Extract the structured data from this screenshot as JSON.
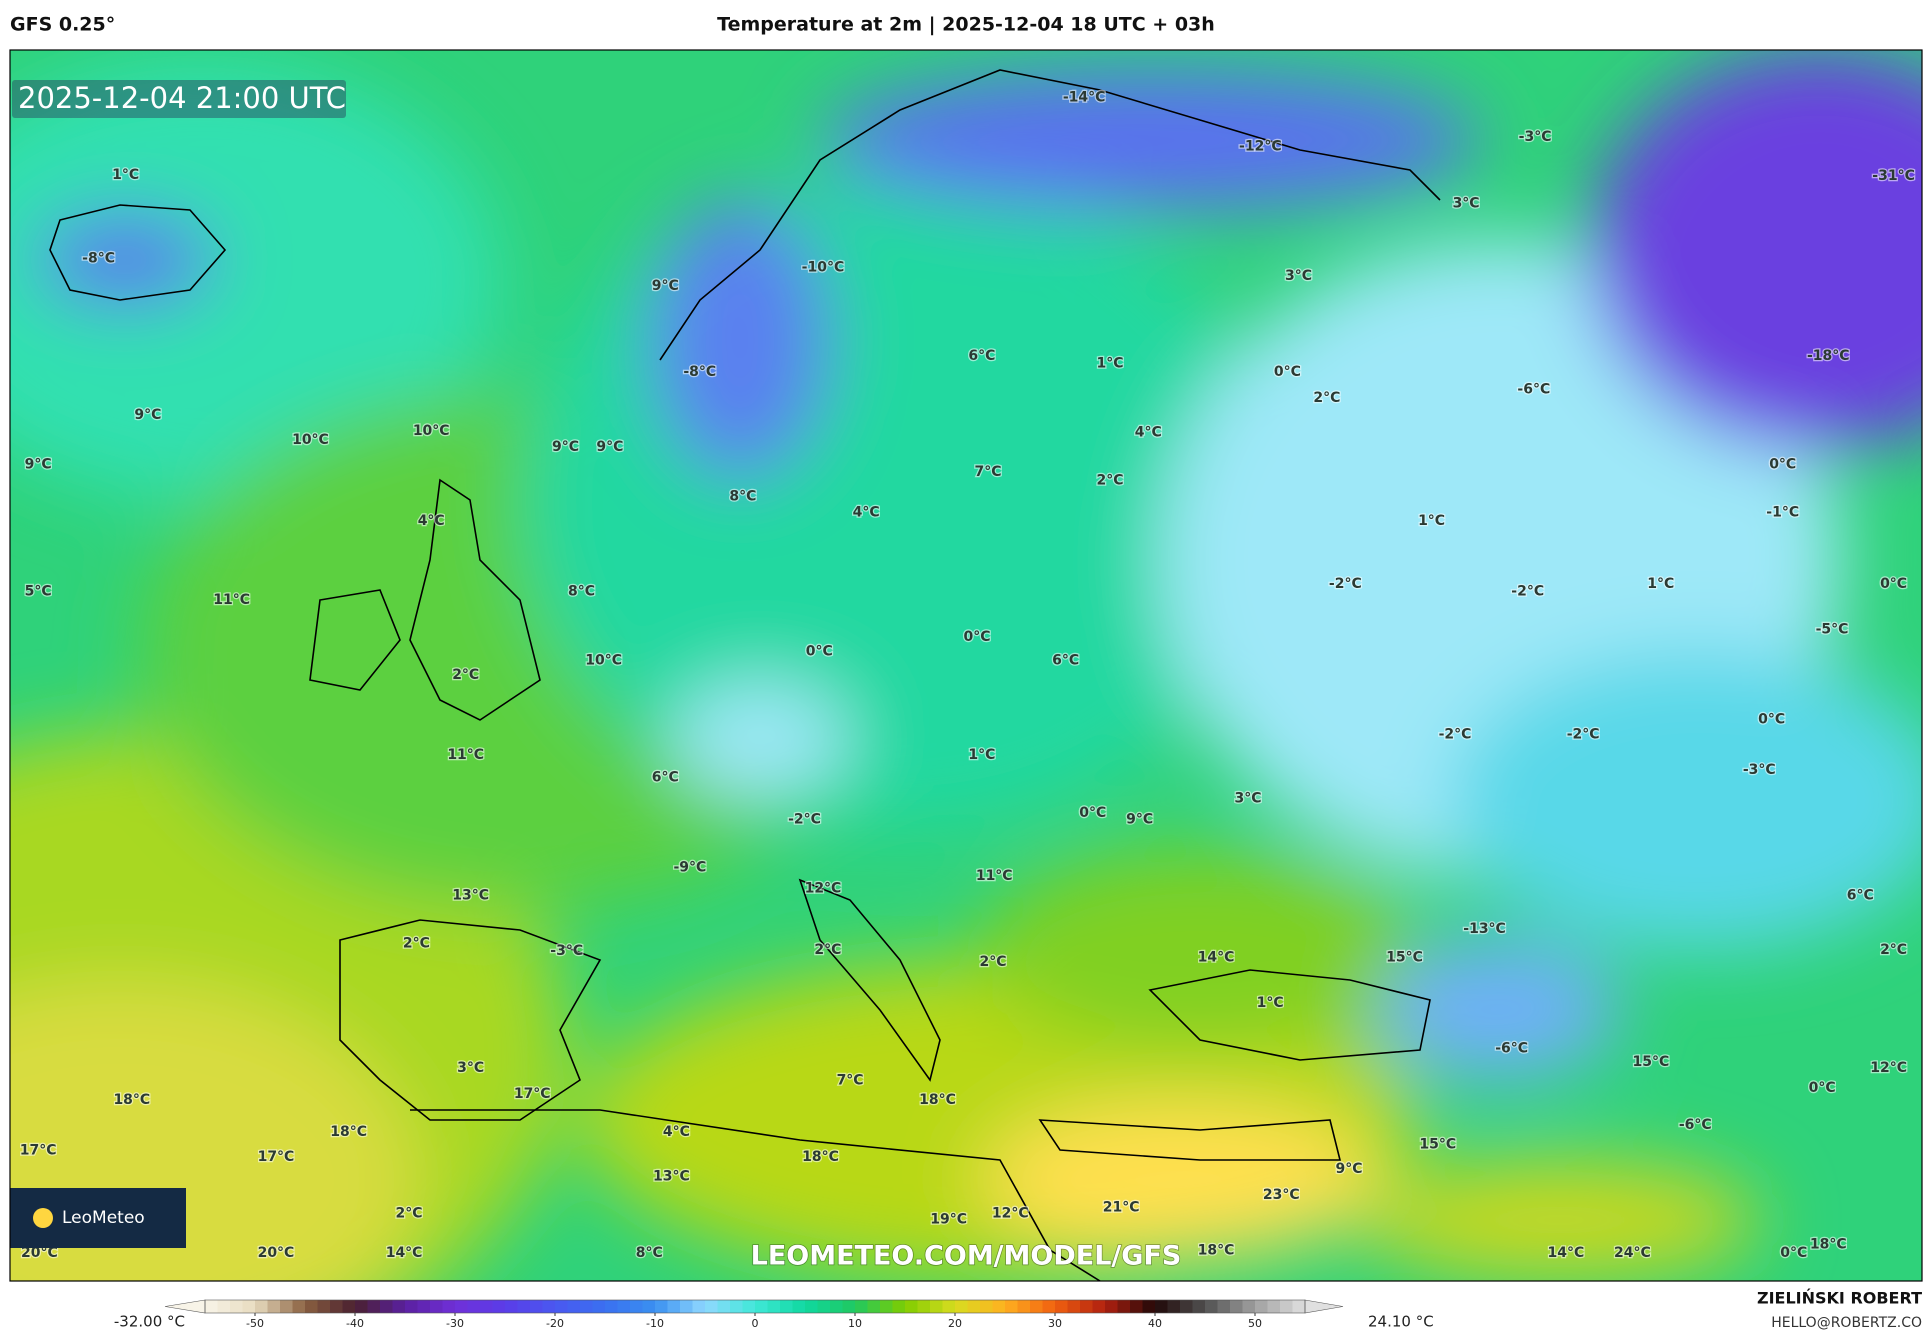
{
  "header": {
    "model": "GFS 0.25°",
    "title": "Temperature at 2m | 2025-12-04 18 UTC + 03h",
    "valid_time": "2025-12-04 21:00 UTC"
  },
  "map": {
    "watermark": "LEOMETEO.COM/MODEL/GFS",
    "brand": "LeoMeteo",
    "labels": [
      "1°C",
      "-8°C",
      "9°C",
      "-10°C",
      "-14°C",
      "-12°C",
      "-3°C",
      "3°C",
      "-31°C",
      "3°C",
      "6°C",
      "1°C",
      "0°C",
      "2°C",
      "-6°C",
      "-18°C",
      "-8°C",
      "9°C",
      "10°C",
      "10°C",
      "9°C",
      "9°C",
      "9°C",
      "4°C",
      "7°C",
      "2°C",
      "0°C",
      "-1°C",
      "8°C",
      "4°C",
      "4°C",
      "1°C",
      "5°C",
      "11°C",
      "8°C",
      "-2°C",
      "-2°C",
      "1°C",
      "0°C",
      "-5°C",
      "0°C",
      "0°C",
      "6°C",
      "2°C",
      "10°C",
      "-2°C",
      "-2°C",
      "0°C",
      "11°C",
      "6°C",
      "1°C",
      "-3°C",
      "3°C",
      "0°C",
      "9°C",
      "-2°C",
      "-9°C",
      "13°C",
      "12°C",
      "11°C",
      "6°C",
      "-13°C",
      "2°C",
      "-3°C",
      "2°C",
      "14°C",
      "15°C",
      "2°C",
      "2°C",
      "1°C",
      "3°C",
      "17°C",
      "18°C",
      "7°C",
      "18°C",
      "-6°C",
      "15°C",
      "12°C",
      "0°C",
      "-6°C",
      "18°C",
      "4°C",
      "17°C",
      "17°C",
      "18°C",
      "15°C",
      "9°C",
      "13°C",
      "23°C",
      "21°C",
      "2°C",
      "19°C",
      "12°C",
      "20°C",
      "20°C",
      "14°C",
      "8°C",
      "18°C",
      "14°C",
      "24°C",
      "0°C",
      "18°C"
    ]
  },
  "colorbar": {
    "min_label": "-32.00 °C",
    "max_label": "24.10 °C",
    "lim": [
      -55,
      55
    ],
    "ticks": [
      -50,
      -40,
      -30,
      -20,
      -10,
      0,
      10,
      20,
      30,
      40,
      50
    ]
  },
  "footer": {
    "author": "ZIELIŃSKI ROBERT",
    "contact": "HELLO@ROBERTZ.CO"
  }
}
